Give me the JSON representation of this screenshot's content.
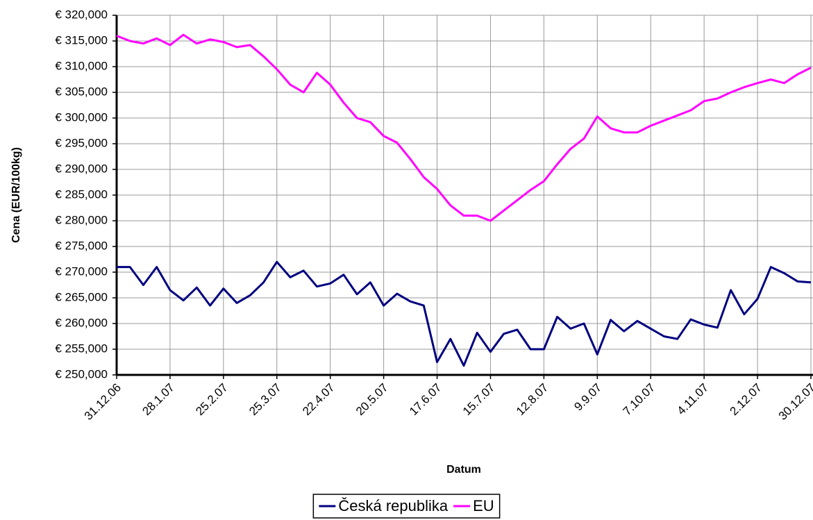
{
  "chart_data": {
    "type": "line",
    "y_label": "Cena (EUR/100kg)",
    "x_label": "Datum",
    "categories": [
      "31.12.06",
      null,
      null,
      null,
      "28.1.07",
      null,
      null,
      null,
      "25.2.07",
      null,
      null,
      null,
      "25.3.07",
      null,
      null,
      null,
      "22.4.07",
      null,
      null,
      null,
      "20.5.07",
      null,
      null,
      null,
      "17.6.07",
      null,
      null,
      null,
      "15.7.07",
      null,
      null,
      null,
      "12.8.07",
      null,
      null,
      null,
      "9.9.07",
      null,
      null,
      null,
      "7.10.07",
      null,
      null,
      null,
      "4.11.07",
      null,
      null,
      null,
      "2.12.07",
      null,
      null,
      null,
      "30.12.07"
    ],
    "series": [
      {
        "name": "Česká republika",
        "color": "#000080",
        "values": [
          271000,
          271000,
          267500,
          271000,
          266500,
          264500,
          267000,
          263500,
          266800,
          264000,
          265500,
          268000,
          272000,
          269000,
          270300,
          267200,
          267800,
          269500,
          265700,
          268000,
          263500,
          265800,
          264300,
          263500,
          252500,
          257000,
          251800,
          258200,
          254500,
          258000,
          258800,
          255000,
          255000,
          261300,
          259000,
          260000,
          254000,
          260700,
          258500,
          260500,
          259000,
          257500,
          257000,
          260800,
          259800,
          259200,
          266500,
          261800,
          264800,
          271000,
          269800,
          268200,
          268000
        ]
      },
      {
        "name": "EU",
        "color": "#ff00ff",
        "values": [
          316000,
          315000,
          314500,
          315500,
          314200,
          316200,
          314500,
          315300,
          314800,
          313800,
          314200,
          312000,
          309500,
          306500,
          305000,
          308800,
          306500,
          303000,
          300000,
          299200,
          296500,
          295200,
          292000,
          288500,
          286200,
          283000,
          281000,
          281000,
          280000,
          282000,
          284000,
          286000,
          287700,
          291000,
          294000,
          296000,
          300300,
          298000,
          297200,
          297200,
          298500,
          299500,
          300500,
          301500,
          303300,
          303800,
          305000,
          306000,
          306800,
          307500,
          306800,
          308500,
          309800
        ]
      }
    ],
    "ylim": [
      250000,
      320000
    ],
    "yticks": [
      {
        "value": 250000,
        "label": "€ 250,000"
      },
      {
        "value": 255000,
        "label": "€ 255,000"
      },
      {
        "value": 260000,
        "label": "€ 260,000"
      },
      {
        "value": 265000,
        "label": "€ 265,000"
      },
      {
        "value": 270000,
        "label": "€ 270,000"
      },
      {
        "value": 275000,
        "label": "€ 275,000"
      },
      {
        "value": 280000,
        "label": "€ 280,000"
      },
      {
        "value": 285000,
        "label": "€ 285,000"
      },
      {
        "value": 290000,
        "label": "€ 290,000"
      },
      {
        "value": 295000,
        "label": "€ 295,000"
      },
      {
        "value": 300000,
        "label": "€ 300,000"
      },
      {
        "value": 305000,
        "label": "€ 305,000"
      },
      {
        "value": 310000,
        "label": "€ 310,000"
      },
      {
        "value": 315000,
        "label": "€ 315,000"
      },
      {
        "value": 320000,
        "label": "€ 320,000"
      }
    ],
    "grid": true,
    "legend": "bottom"
  }
}
